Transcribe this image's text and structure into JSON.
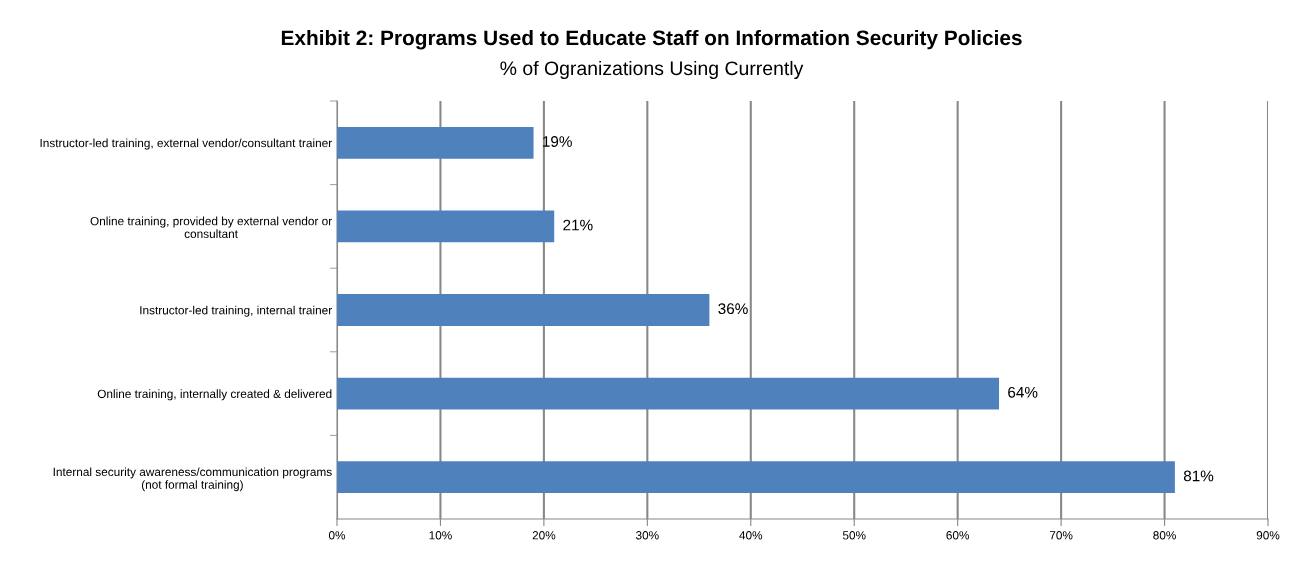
{
  "chart_data": {
    "type": "bar",
    "orientation": "horizontal",
    "title": "Exhibit 2: Programs Used to Educate Staff on Information Security Policies",
    "subtitle": "% of Ogranizations Using Currently",
    "categories": [
      "Instructor-led training, external vendor/consultant trainer",
      "Online training, provided by external vendor or\nconsultant",
      "Instructor-led training, internal trainer",
      "Online training, internally created & delivered",
      "Internal security awareness/communication programs\n(not formal training)"
    ],
    "values": [
      19,
      21,
      36,
      64,
      81
    ],
    "value_labels": [
      "19%",
      "21%",
      "36%",
      "64%",
      "81%"
    ],
    "color": "#4f81bd",
    "xlim": [
      0,
      90
    ],
    "xticks": [
      {
        "value": 0,
        "label": "0%"
      },
      {
        "value": 10,
        "label": "10%"
      },
      {
        "value": 20,
        "label": "20%"
      },
      {
        "value": 30,
        "label": "30%"
      },
      {
        "value": 40,
        "label": "40%"
      },
      {
        "value": 50,
        "label": "50%"
      },
      {
        "value": 60,
        "label": "60%"
      },
      {
        "value": 70,
        "label": "70%"
      },
      {
        "value": 80,
        "label": "80%"
      },
      {
        "value": 90,
        "label": "90%"
      }
    ],
    "grid": "x"
  }
}
